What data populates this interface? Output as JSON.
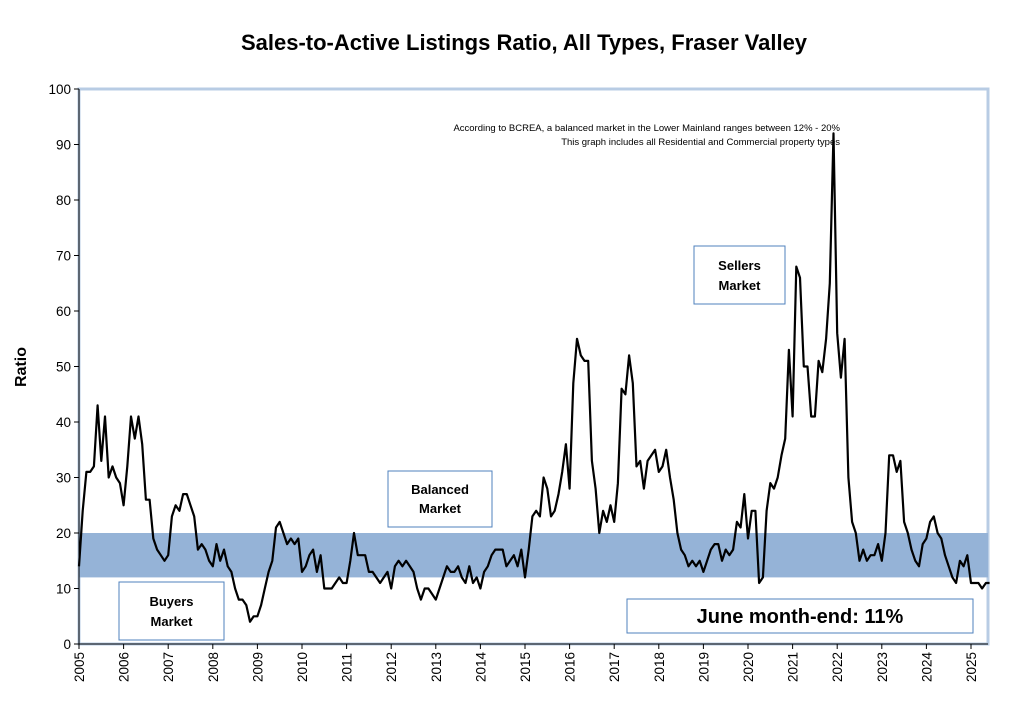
{
  "chart_data": {
    "type": "line",
    "title": "Sales-to-Active Listings Ratio, All Types, Fraser Valley",
    "ylabel": "Ratio",
    "xlabel": "",
    "ylim": [
      0,
      100
    ],
    "yticks": [
      0,
      10,
      20,
      30,
      40,
      50,
      60,
      70,
      80,
      90,
      100
    ],
    "xticks": [
      "2005",
      "2006",
      "2007",
      "2008",
      "2009",
      "2010",
      "2011",
      "2012",
      "2013",
      "2014",
      "2015",
      "2016",
      "2017",
      "2018",
      "2019",
      "2020",
      "2021",
      "2022",
      "2023",
      "2024",
      "2025"
    ],
    "balanced_band": {
      "low": 12,
      "high": 20,
      "color": "#95b3d7"
    },
    "line_color": "#000000",
    "notes": [
      "According to BCREA, a balanced market in the Lower Mainland ranges between 12% - 20%",
      "This graph includes all Residential and Commercial property types"
    ],
    "annotations": {
      "sellers": [
        "Sellers",
        "Market"
      ],
      "balanced": [
        "Balanced",
        "Market"
      ],
      "buyers": [
        "Buyers",
        "Market"
      ],
      "latest": "June month-end: 11%"
    },
    "series": [
      {
        "x_start": "2005-01",
        "frequency": "monthly",
        "values": [
          14,
          24,
          31,
          31,
          32,
          43,
          33,
          41,
          30,
          32,
          30,
          29,
          25,
          32,
          41,
          37,
          41,
          36,
          26,
          26,
          19,
          17,
          16,
          15,
          16,
          23,
          25,
          24,
          27,
          27,
          25,
          23,
          17,
          18,
          17,
          15,
          14,
          18,
          15,
          17,
          14,
          13,
          10,
          8,
          8,
          7,
          4,
          5,
          5,
          7,
          10,
          13,
          15,
          21,
          22,
          20,
          18,
          19,
          18,
          19,
          13,
          14,
          16,
          17,
          13,
          16,
          10,
          10,
          10,
          11,
          12,
          11,
          11,
          15,
          20,
          16,
          16,
          16,
          13,
          13,
          12,
          11,
          12,
          13,
          10,
          14,
          15,
          14,
          15,
          14,
          13,
          10,
          8,
          10,
          10,
          9,
          8,
          10,
          12,
          14,
          13,
          13,
          14,
          12,
          11,
          14,
          11,
          12,
          10,
          13,
          14,
          16,
          17,
          17,
          17,
          14,
          15,
          16,
          14,
          17,
          12,
          17,
          23,
          24,
          23,
          30,
          28,
          23,
          24,
          27,
          31,
          36,
          28,
          47,
          55,
          52,
          51,
          51,
          33,
          28,
          20,
          24,
          22,
          25,
          22,
          29,
          46,
          45,
          52,
          47,
          32,
          33,
          28,
          33,
          34,
          35,
          31,
          32,
          35,
          30,
          26,
          20,
          17,
          16,
          14,
          15,
          14,
          15,
          13,
          15,
          17,
          18,
          18,
          15,
          17,
          16,
          17,
          22,
          21,
          27,
          19,
          24,
          24,
          11,
          12,
          24,
          29,
          28,
          30,
          34,
          37,
          53,
          41,
          68,
          66,
          50,
          50,
          41,
          41,
          51,
          49,
          55,
          65,
          92,
          56,
          48,
          55,
          30,
          22,
          20,
          15,
          17,
          15,
          16,
          16,
          18,
          15,
          20,
          34,
          34,
          31,
          33,
          22,
          20,
          17,
          15,
          14,
          18,
          19,
          22,
          23,
          20,
          19,
          16,
          14,
          12,
          11,
          15,
          14,
          16,
          11,
          11,
          11,
          10,
          11,
          11
        ]
      }
    ]
  }
}
